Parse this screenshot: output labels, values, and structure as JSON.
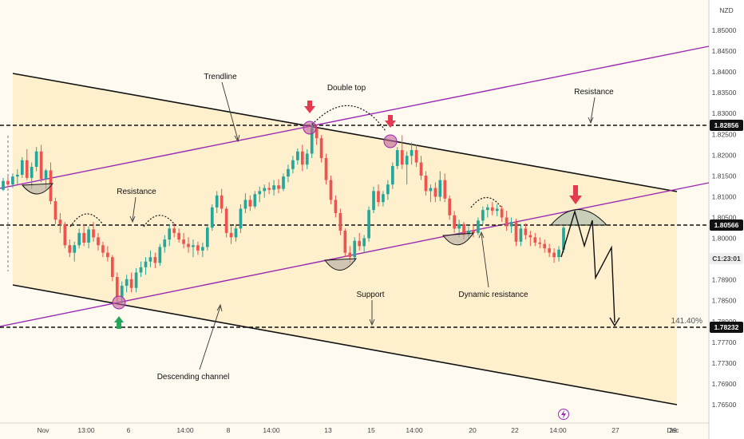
{
  "chart_data": {
    "type": "candlestick",
    "currency": "NZD",
    "price_scale": {
      "ticks": [
        "1.85000",
        "1.84500",
        "1.84000",
        "1.83500",
        "1.83000",
        "1.82500",
        "1.82000",
        "1.81500",
        "1.81000",
        "1.80500",
        "1.80000",
        "1.79500",
        "1.78900",
        "1.78500",
        "1.78000",
        "1.77700",
        "1.77300",
        "1.76900",
        "1.76500"
      ],
      "min": 1.763,
      "max": 1.853
    },
    "time_axis": {
      "labels": [
        "Nov",
        "13:00",
        "6",
        "14:00",
        "8",
        "14:00",
        "13",
        "15",
        "14:00",
        "20",
        "22",
        "14:00",
        "27",
        "29",
        "Dec"
      ]
    },
    "price_tags": [
      {
        "value": "1.82856",
        "style": "dark"
      },
      {
        "value": "1.80566",
        "style": "dark"
      },
      {
        "value": "C1:23:01",
        "style": "light"
      },
      {
        "value": "1.78232",
        "style": "dark"
      }
    ],
    "annotations": {
      "trendline": "Trendline",
      "double_top": "Double top",
      "resistance_top": "Resistance",
      "resistance_left": "Resistance",
      "support": "Support",
      "dynamic_resistance": "Dynamic resistance",
      "descending_channel": "Descending channel",
      "fib_label": "141.40%"
    },
    "levels": {
      "resistance": 1.82856,
      "mid": 1.80566,
      "support": 1.78232
    },
    "colors": {
      "up": "#26a69a",
      "down": "#ef5350",
      "channel_fill": "#fde9bd",
      "purple_line": "#9c27b0",
      "arrow_red": "#e53950",
      "arrow_green": "#26a65a",
      "highlight": "#c2609a"
    },
    "candles": [
      [
        1.8138,
        1.8165,
        1.8135,
        1.8158
      ],
      [
        1.8158,
        1.8168,
        1.8145,
        1.815
      ],
      [
        1.815,
        1.8175,
        1.8142,
        1.8168
      ],
      [
        1.8168,
        1.8185,
        1.815,
        1.8172
      ],
      [
        1.8172,
        1.8212,
        1.8165,
        1.8205
      ],
      [
        1.8205,
        1.823,
        1.816,
        1.8165
      ],
      [
        1.8165,
        1.82,
        1.814,
        1.819
      ],
      [
        1.819,
        1.8235,
        1.818,
        1.8225
      ],
      [
        1.8225,
        1.824,
        1.8155,
        1.8162
      ],
      [
        1.8162,
        1.8185,
        1.814,
        1.8182
      ],
      [
        1.8182,
        1.82,
        1.8105,
        1.8112
      ],
      [
        1.8112,
        1.812,
        1.806,
        1.807
      ],
      [
        1.807,
        1.8085,
        1.804,
        1.806
      ],
      [
        1.806,
        1.8065,
        1.8005,
        1.8012
      ],
      [
        1.8012,
        1.8025,
        1.7985,
        1.7995
      ],
      [
        1.7995,
        1.802,
        1.7975,
        1.8012
      ],
      [
        1.8012,
        1.805,
        1.8005,
        1.804
      ],
      [
        1.804,
        1.806,
        1.801,
        1.8018
      ],
      [
        1.8018,
        1.8055,
        1.8005,
        1.8048
      ],
      [
        1.8048,
        1.8065,
        1.802,
        1.803
      ],
      [
        1.803,
        1.804,
        1.8,
        1.8012
      ],
      [
        1.8012,
        1.802,
        1.7985,
        1.7995
      ],
      [
        1.7995,
        1.801,
        1.7975,
        1.7985
      ],
      [
        1.7985,
        1.799,
        1.793,
        1.794
      ],
      [
        1.794,
        1.795,
        1.7885,
        1.7895
      ],
      [
        1.7895,
        1.793,
        1.788,
        1.792
      ],
      [
        1.792,
        1.7945,
        1.7905,
        1.7935
      ],
      [
        1.7935,
        1.795,
        1.7905,
        1.7915
      ],
      [
        1.7915,
        1.796,
        1.7905,
        1.795
      ],
      [
        1.795,
        1.7975,
        1.794,
        1.7962
      ],
      [
        1.7962,
        1.7985,
        1.7945,
        1.7975
      ],
      [
        1.7975,
        1.8,
        1.7962,
        1.7985
      ],
      [
        1.7985,
        1.7995,
        1.796,
        1.7972
      ],
      [
        1.7972,
        1.8015,
        1.7965,
        1.8008
      ],
      [
        1.8008,
        1.8035,
        1.7995,
        1.8025
      ],
      [
        1.8025,
        1.806,
        1.801,
        1.805
      ],
      [
        1.805,
        1.8062,
        1.803,
        1.804
      ],
      [
        1.804,
        1.805,
        1.8018,
        1.8025
      ],
      [
        1.8025,
        1.804,
        1.8005,
        1.8015
      ],
      [
        1.8015,
        1.803,
        1.7995,
        1.8008
      ],
      [
        1.8008,
        1.8025,
        1.7985,
        1.8012
      ],
      [
        1.8012,
        1.802,
        1.799,
        1.8
      ],
      [
        1.8,
        1.8018,
        1.7985,
        1.8008
      ],
      [
        1.8008,
        1.806,
        1.8,
        1.8052
      ],
      [
        1.8052,
        1.8105,
        1.8045,
        1.8098
      ],
      [
        1.8098,
        1.8135,
        1.8085,
        1.8125
      ],
      [
        1.8125,
        1.814,
        1.8085,
        1.8095
      ],
      [
        1.8095,
        1.81,
        1.803,
        1.804
      ],
      [
        1.804,
        1.8055,
        1.8015,
        1.803
      ],
      [
        1.803,
        1.806,
        1.802,
        1.805
      ],
      [
        1.805,
        1.8105,
        1.804,
        1.8095
      ],
      [
        1.8095,
        1.813,
        1.8085,
        1.8115
      ],
      [
        1.8115,
        1.8125,
        1.809,
        1.81
      ],
      [
        1.81,
        1.8135,
        1.8095,
        1.8128
      ],
      [
        1.8128,
        1.8145,
        1.811,
        1.8135
      ],
      [
        1.8135,
        1.815,
        1.812,
        1.8142
      ],
      [
        1.8142,
        1.8155,
        1.8128,
        1.8138
      ],
      [
        1.8138,
        1.816,
        1.8125,
        1.8148
      ],
      [
        1.8148,
        1.8162,
        1.813,
        1.814
      ],
      [
        1.814,
        1.8175,
        1.8135,
        1.8168
      ],
      [
        1.8168,
        1.8195,
        1.8155,
        1.8185
      ],
      [
        1.8185,
        1.8215,
        1.8175,
        1.8205
      ],
      [
        1.8205,
        1.8232,
        1.8195,
        1.8225
      ],
      [
        1.8225,
        1.824,
        1.818,
        1.8195
      ],
      [
        1.8195,
        1.823,
        1.8185,
        1.822
      ],
      [
        1.822,
        1.829,
        1.821,
        1.8278
      ],
      [
        1.8278,
        1.8286,
        1.824,
        1.8255
      ],
      [
        1.8255,
        1.8262,
        1.82,
        1.821
      ],
      [
        1.821,
        1.822,
        1.815,
        1.816
      ],
      [
        1.816,
        1.817,
        1.8105,
        1.8115
      ],
      [
        1.8115,
        1.8125,
        1.8075,
        1.8085
      ],
      [
        1.8085,
        1.8095,
        1.8035,
        1.8045
      ],
      [
        1.8045,
        1.805,
        1.7985,
        1.7995
      ],
      [
        1.7995,
        1.801,
        1.7972,
        1.7985
      ],
      [
        1.7985,
        1.803,
        1.7975,
        1.8022
      ],
      [
        1.8022,
        1.804,
        1.8,
        1.801
      ],
      [
        1.801,
        1.8035,
        1.7995,
        1.8028
      ],
      [
        1.8028,
        1.81,
        1.802,
        1.8092
      ],
      [
        1.8092,
        1.8145,
        1.8085,
        1.8135
      ],
      [
        1.8135,
        1.815,
        1.81,
        1.811
      ],
      [
        1.811,
        1.8135,
        1.81,
        1.8128
      ],
      [
        1.8128,
        1.816,
        1.8115,
        1.815
      ],
      [
        1.815,
        1.82,
        1.814,
        1.8192
      ],
      [
        1.8192,
        1.8235,
        1.8185,
        1.8228
      ],
      [
        1.8228,
        1.8262,
        1.8185,
        1.8195
      ],
      [
        1.8195,
        1.8225,
        1.815,
        1.8215
      ],
      [
        1.8215,
        1.8245,
        1.8195,
        1.8228
      ],
      [
        1.8228,
        1.824,
        1.819,
        1.82
      ],
      [
        1.82,
        1.8215,
        1.816,
        1.817
      ],
      [
        1.817,
        1.818,
        1.8125,
        1.8135
      ],
      [
        1.8135,
        1.815,
        1.811,
        1.8142
      ],
      [
        1.8142,
        1.8155,
        1.811,
        1.8122
      ],
      [
        1.8122,
        1.818,
        1.8112,
        1.816
      ],
      [
        1.816,
        1.8175,
        1.811,
        1.8118
      ],
      [
        1.8118,
        1.8125,
        1.807,
        1.808
      ],
      [
        1.808,
        1.809,
        1.804,
        1.805
      ],
      [
        1.805,
        1.807,
        1.803,
        1.806
      ],
      [
        1.806,
        1.8065,
        1.8025,
        1.8035
      ],
      [
        1.8035,
        1.8055,
        1.8025,
        1.8045
      ],
      [
        1.8045,
        1.806,
        1.803,
        1.804
      ],
      [
        1.804,
        1.8075,
        1.8035,
        1.8068
      ],
      [
        1.8068,
        1.81,
        1.806,
        1.8092
      ],
      [
        1.8092,
        1.8105,
        1.8075,
        1.8098
      ],
      [
        1.8098,
        1.811,
        1.808,
        1.809
      ],
      [
        1.809,
        1.8105,
        1.8078,
        1.8095
      ],
      [
        1.8095,
        1.8102,
        1.8065,
        1.8075
      ],
      [
        1.8075,
        1.809,
        1.8045,
        1.8055
      ],
      [
        1.8055,
        1.8075,
        1.804,
        1.8065
      ],
      [
        1.8065,
        1.8072,
        1.801,
        1.802
      ],
      [
        1.802,
        1.806,
        1.801,
        1.805
      ],
      [
        1.805,
        1.8062,
        1.8025,
        1.8035
      ],
      [
        1.8035,
        1.8045,
        1.801,
        1.803
      ],
      [
        1.803,
        1.804,
        1.801,
        1.8018
      ],
      [
        1.8018,
        1.803,
        1.8005,
        1.8015
      ],
      [
        1.8015,
        1.8025,
        1.7995,
        1.8005
      ],
      [
        1.8005,
        1.8015,
        1.7985,
        1.7995
      ],
      [
        1.7995,
        1.8005,
        1.7972,
        1.7985
      ],
      [
        1.7985,
        1.801,
        1.7975,
        1.8002
      ],
      [
        1.8002,
        1.806,
        1.7995,
        1.8052
      ]
    ]
  }
}
